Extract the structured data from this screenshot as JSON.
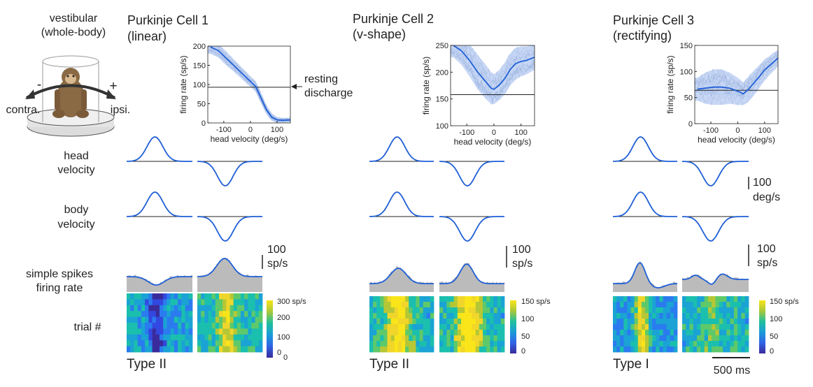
{
  "figure": {
    "paradigm_label": [
      "vestibular",
      "(whole-body)"
    ],
    "direction_minus": "-",
    "direction_plus": "+",
    "contra_label": "contra.",
    "ipsi_label": "ipsi.",
    "row_labels": {
      "head": [
        "head",
        "velocity"
      ],
      "body": [
        "body",
        "velocity"
      ],
      "spikes": [
        "simple spikes",
        "firing rate"
      ],
      "trial": "trial #"
    },
    "resting_label": [
      "resting",
      "discharge"
    ],
    "scalebars": {
      "velocity": [
        "100",
        "deg/s"
      ],
      "rate": [
        "100",
        "sp/s"
      ],
      "time": "500 ms"
    }
  },
  "chart_data": [
    {
      "type": "line",
      "title": [
        "Purkinje Cell 1",
        "(linear)"
      ],
      "xlabel": "head velocity (deg/s)",
      "ylabel": "firing rate (sp/s)",
      "xlim": [
        -160,
        150
      ],
      "ylim": [
        0,
        200
      ],
      "xticks": [
        -100,
        0,
        100
      ],
      "yticks": [
        0,
        50,
        100,
        150,
        200
      ],
      "resting": 93,
      "x": [
        -150,
        -120,
        -90,
        -60,
        -30,
        0,
        20,
        40,
        60,
        80,
        100,
        120,
        150
      ],
      "mean": [
        198,
        188,
        168,
        148,
        128,
        108,
        95,
        65,
        35,
        15,
        8,
        7,
        8
      ],
      "band": [
        18,
        18,
        18,
        16,
        15,
        14,
        14,
        14,
        12,
        10,
        7,
        6,
        6
      ],
      "type_label": "Type II",
      "heatmap": {
        "ticks": [
          0,
          100,
          200
        ],
        "max_label": "300 sp/s",
        "zero_label": "0"
      }
    },
    {
      "type": "line",
      "title": [
        "Purkinje Cell 2",
        "(v-shape)"
      ],
      "xlabel": "head velocity (deg/s)",
      "ylabel": "firing rate (sp/s)",
      "xlim": [
        -160,
        150
      ],
      "ylim": [
        100,
        250
      ],
      "xticks": [
        -100,
        0,
        100
      ],
      "yticks": [
        100,
        150,
        200,
        250
      ],
      "resting": 158,
      "x": [
        -150,
        -120,
        -90,
        -60,
        -30,
        -10,
        0,
        20,
        40,
        60,
        80,
        100,
        120,
        150
      ],
      "mean": [
        250,
        240,
        222,
        200,
        182,
        170,
        168,
        176,
        188,
        205,
        216,
        220,
        222,
        228
      ],
      "band": [
        22,
        26,
        30,
        32,
        32,
        30,
        28,
        28,
        30,
        30,
        30,
        28,
        26,
        24
      ],
      "type_label": "Type II",
      "heatmap": {
        "ticks": [
          0,
          50,
          100
        ],
        "max_label": "150 sp/s"
      }
    },
    {
      "type": "line",
      "title": [
        "Purkinje Cell 3",
        "(rectifying)"
      ],
      "xlabel": "head velocity (deg/s)",
      "ylabel": "firing rate (sp/s)",
      "xlim": [
        -160,
        150
      ],
      "ylim": [
        0,
        150
      ],
      "xticks": [
        -100,
        0,
        100
      ],
      "yticks": [
        0,
        50,
        100,
        150
      ],
      "resting": 64,
      "x": [
        -150,
        -120,
        -90,
        -60,
        -30,
        0,
        10,
        20,
        40,
        60,
        80,
        100,
        120,
        150
      ],
      "mean": [
        66,
        68,
        70,
        70,
        68,
        62,
        60,
        57,
        66,
        78,
        90,
        103,
        112,
        126
      ],
      "band": [
        22,
        30,
        34,
        34,
        30,
        26,
        24,
        22,
        24,
        24,
        22,
        20,
        18,
        16
      ],
      "type_label": "Type I",
      "heatmap": {
        "ticks": [
          0,
          50,
          100
        ],
        "max_label": "150 sp/s"
      }
    }
  ],
  "colors": {
    "trace": "#1f5fd6",
    "band": "#b9cdf2",
    "gray": "#bbbbbb",
    "axis": "#222222"
  }
}
